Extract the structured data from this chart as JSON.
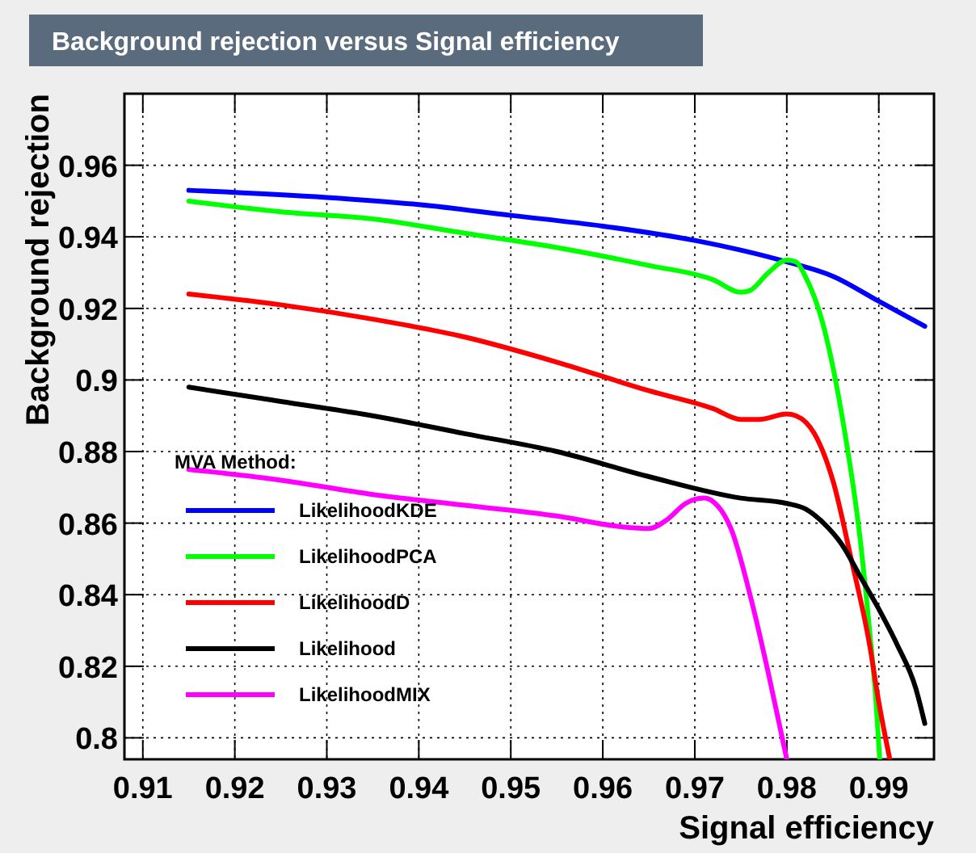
{
  "chart_data": {
    "type": "line",
    "title": "Background rejection versus Signal efficiency",
    "xlabel": "Signal efficiency",
    "ylabel": "Background rejection",
    "legend_title": "MVA Method:",
    "xlim": [
      0.908,
      0.996
    ],
    "ylim": [
      0.794,
      0.98
    ],
    "xticks": [
      0.91,
      0.92,
      0.93,
      0.94,
      0.95,
      0.96,
      0.97,
      0.98,
      0.99
    ],
    "yticks": [
      0.8,
      0.82,
      0.84,
      0.86,
      0.88,
      0.9,
      0.92,
      0.94,
      0.96
    ],
    "grid": true,
    "legend": "bottom left",
    "line_style": "solid",
    "series": [
      {
        "name": "LikelihoodKDE",
        "color": "#0000ff",
        "x": [
          0.915,
          0.93,
          0.94,
          0.95,
          0.96,
          0.97,
          0.98,
          0.985,
          0.99,
          0.995
        ],
        "values": [
          0.953,
          0.951,
          0.949,
          0.946,
          0.943,
          0.939,
          0.933,
          0.929,
          0.922,
          0.915
        ]
      },
      {
        "name": "LikelihoodPCA",
        "color": "#00ff00",
        "x": [
          0.915,
          0.925,
          0.935,
          0.945,
          0.955,
          0.965,
          0.972,
          0.975,
          0.976,
          0.978,
          0.98,
          0.981,
          0.982,
          0.984,
          0.986,
          0.988,
          0.989,
          0.9897,
          0.9901
        ],
        "values": [
          0.95,
          0.947,
          0.945,
          0.941,
          0.937,
          0.932,
          0.928,
          0.9245,
          0.925,
          0.93,
          0.9335,
          0.933,
          0.929,
          0.915,
          0.89,
          0.855,
          0.83,
          0.81,
          0.794
        ]
      },
      {
        "name": "LikelihoodD",
        "color": "#ff0000",
        "x": [
          0.915,
          0.925,
          0.935,
          0.945,
          0.955,
          0.965,
          0.972,
          0.975,
          0.977,
          0.98,
          0.981,
          0.983,
          0.985,
          0.987,
          0.989,
          0.99,
          0.9912
        ],
        "values": [
          0.924,
          0.921,
          0.917,
          0.912,
          0.905,
          0.897,
          0.892,
          0.889,
          0.889,
          0.8905,
          0.89,
          0.885,
          0.872,
          0.85,
          0.826,
          0.81,
          0.794
        ]
      },
      {
        "name": "Likelihood",
        "color": "#000000",
        "x": [
          0.915,
          0.925,
          0.935,
          0.945,
          0.955,
          0.965,
          0.975,
          0.98,
          0.982,
          0.984,
          0.986,
          0.988,
          0.99,
          0.992,
          0.994,
          0.995
        ],
        "values": [
          0.898,
          0.894,
          0.89,
          0.885,
          0.88,
          0.873,
          0.867,
          0.8655,
          0.864,
          0.86,
          0.854,
          0.845,
          0.836,
          0.826,
          0.814,
          0.804
        ]
      },
      {
        "name": "LikelihoodMIX",
        "color": "#ff00ff",
        "x": [
          0.915,
          0.925,
          0.935,
          0.945,
          0.955,
          0.962,
          0.965,
          0.967,
          0.969,
          0.971,
          0.972,
          0.974,
          0.976,
          0.978,
          0.9795,
          0.98
        ],
        "values": [
          0.875,
          0.872,
          0.868,
          0.865,
          0.862,
          0.859,
          0.8585,
          0.861,
          0.8655,
          0.867,
          0.866,
          0.858,
          0.84,
          0.818,
          0.8,
          0.794
        ]
      }
    ]
  }
}
